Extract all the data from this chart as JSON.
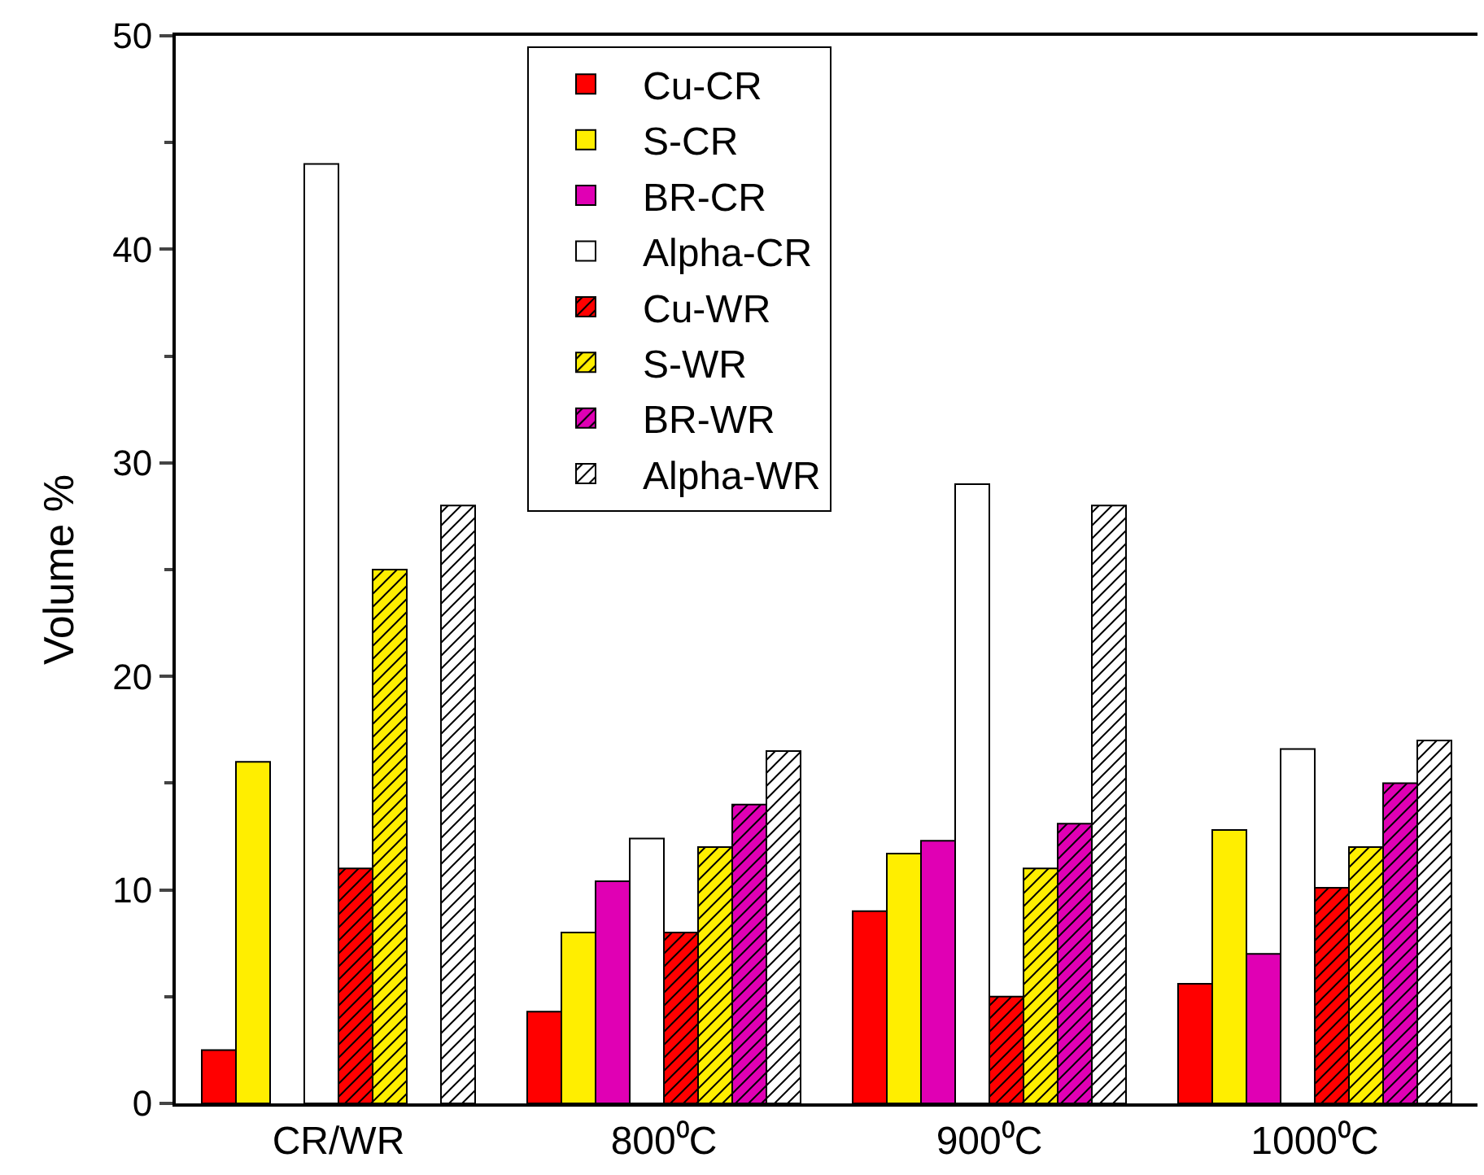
{
  "chart_data": {
    "type": "bar",
    "ylabel": "Volume %",
    "categories": [
      "CR/WR",
      "800⁰C",
      "900⁰C",
      "1000⁰C"
    ],
    "ylim": [
      0,
      50
    ],
    "yticks": [
      0,
      10,
      20,
      30,
      40,
      50
    ],
    "grid": false,
    "legend": "top",
    "series": [
      {
        "name": "Cu-CR",
        "color": "#ff0000",
        "values": [
          2.5,
          4.3,
          9,
          5.6
        ]
      },
      {
        "name": "S-CR",
        "color": "#ffee00",
        "values": [
          16,
          8,
          11.7,
          12.8
        ]
      },
      {
        "name": "BR-CR",
        "color": "#e000b4",
        "values": [
          null,
          10.4,
          12.3,
          7
        ]
      },
      {
        "name": "Alpha-CR",
        "color": "#ffffff",
        "values": [
          44,
          12.4,
          29,
          16.6
        ]
      },
      {
        "name": "Cu-WR",
        "color": "#ff0000",
        "values": [
          11,
          8,
          5,
          10.1
        ]
      },
      {
        "name": "S-WR",
        "color": "#ffee00",
        "values": [
          25,
          12,
          11,
          12
        ]
      },
      {
        "name": "BR-WR",
        "color": "#e000b4",
        "values": [
          null,
          14,
          13.1,
          15
        ]
      },
      {
        "name": "Alpha-WR",
        "color": "#ffffff",
        "values": [
          28,
          16.5,
          28,
          17
        ]
      }
    ]
  }
}
